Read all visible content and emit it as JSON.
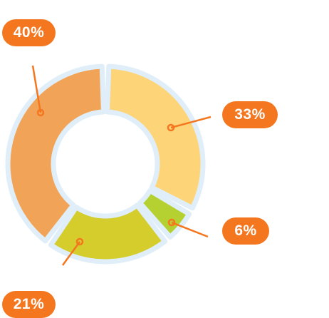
{
  "chart_data": {
    "type": "pie",
    "title": "",
    "slices": [
      {
        "label": "33%",
        "value": 33,
        "color": "#fed478"
      },
      {
        "label": "6%",
        "value": 6,
        "color": "#b5d131"
      },
      {
        "label": "21%",
        "value": 21,
        "color": "#d4cd2b"
      },
      {
        "label": "40%",
        "value": 40,
        "color": "#f1a457"
      }
    ],
    "ring_outline_color": "#dfeef8",
    "leader_color": "#f47720",
    "label_background_color": "#f47720",
    "label_text_color": "#ffffff"
  }
}
